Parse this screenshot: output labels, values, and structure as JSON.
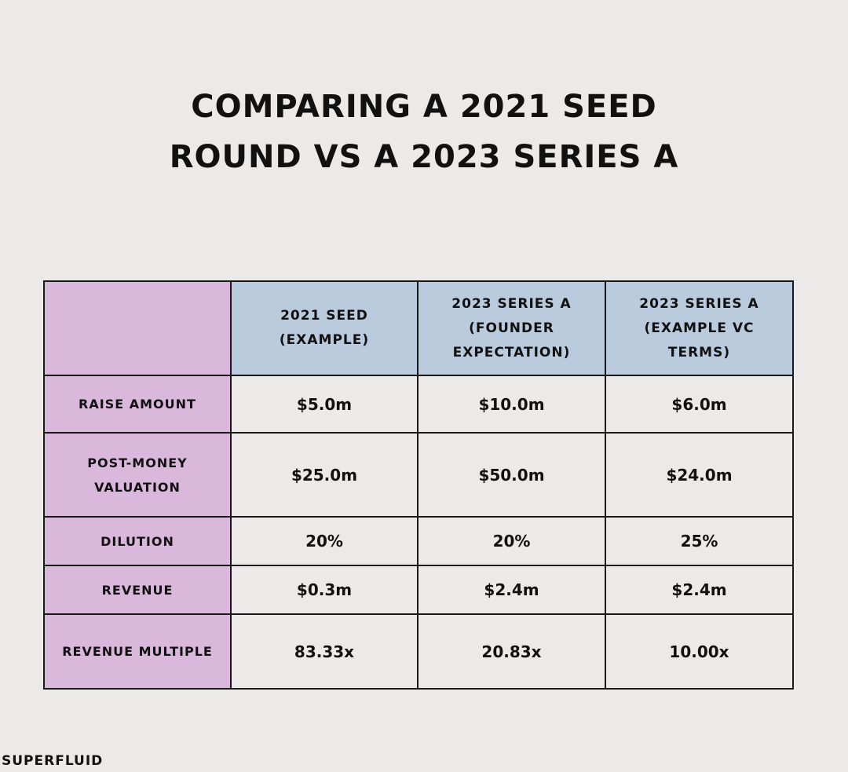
{
  "title": {
    "line1": "COMPARING A 2021 SEED",
    "line2": "ROUND VS A 2023 SERIES A"
  },
  "chart_data": {
    "type": "table",
    "title": "COMPARING A 2021 SEED ROUND VS A 2023 SERIES A",
    "columns": [
      {
        "lines": [
          "2021 SEED",
          "(EXAMPLE)"
        ]
      },
      {
        "lines": [
          "2023 SERIES A",
          "(FOUNDER",
          "EXPECTATION)"
        ]
      },
      {
        "lines": [
          "2023 SERIES A",
          "(EXAMPLE VC",
          "TERMS)"
        ]
      }
    ],
    "rows": [
      {
        "lines": [
          "RAISE AMOUNT"
        ],
        "values": [
          "$5.0m",
          "$10.0m",
          "$6.0m"
        ]
      },
      {
        "lines": [
          "POST-MONEY",
          "VALUATION"
        ],
        "values": [
          "$25.0m",
          "$50.0m",
          "$24.0m"
        ]
      },
      {
        "lines": [
          "DILUTION"
        ],
        "values": [
          "20%",
          "20%",
          "25%"
        ]
      },
      {
        "lines": [
          "REVENUE"
        ],
        "values": [
          "$0.3m",
          "$2.4m",
          "$2.4m"
        ]
      },
      {
        "lines": [
          "REVENUE MULTIPLE"
        ],
        "values": [
          "83.33x",
          "20.83x",
          "10.00x"
        ]
      }
    ]
  },
  "colors": {
    "background": "#ebeae8",
    "header_blue": "#b9cbdc",
    "rowhead_purple": "#d9b8dc",
    "border": "#1a1a1a"
  },
  "brand": "SUPERFLUID"
}
